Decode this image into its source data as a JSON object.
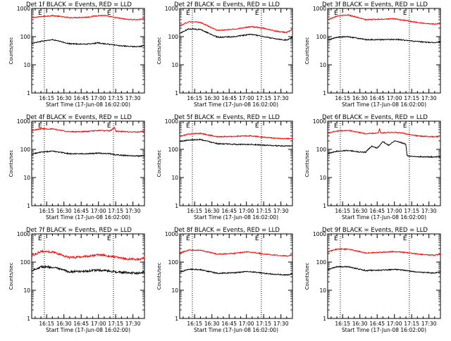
{
  "chart_data": [
    {
      "type": "line",
      "title": "Det 1f BLACK = Events, RED = LLD",
      "xlabel": "Start Time (17-Jun-08 16:02:00)",
      "ylabel": "Counts/sec",
      "yscale": "log",
      "ylim": [
        1,
        1000
      ],
      "xlim": [
        "16:02",
        "17:40"
      ],
      "x_ticks": [
        "16:15",
        "16:30",
        "16:45",
        "17:00",
        "17:15",
        "17:30"
      ],
      "y_ticks": [
        "1",
        "10",
        "100",
        "1000"
      ],
      "markers": [
        {
          "time": "16:13",
          "label": "E"
        },
        {
          "time": "17:13",
          "label": "E"
        }
      ],
      "legend": "none",
      "grid": false,
      "series": [
        {
          "name": "RED",
          "color": "#ff0000",
          "x": [
            "16:02",
            "16:10",
            "16:20",
            "16:35",
            "16:50",
            "17:00",
            "17:05",
            "17:15",
            "17:25",
            "17:35",
            "17:40"
          ],
          "y": [
            470,
            510,
            560,
            470,
            490,
            560,
            560,
            470,
            410,
            400,
            450
          ]
        },
        {
          "name": "BLACK",
          "color": "#000000",
          "x": [
            "16:02",
            "16:10",
            "16:20",
            "16:35",
            "16:50",
            "17:00",
            "17:05",
            "17:15",
            "17:25",
            "17:35",
            "17:40"
          ],
          "y": [
            58,
            68,
            78,
            56,
            54,
            60,
            56,
            50,
            45,
            44,
            48
          ]
        }
      ]
    },
    {
      "type": "line",
      "title": "Det 2f BLACK = Events, RED = LLD",
      "xlabel": "Start Time (17-Jun-08 16:02:00)",
      "ylabel": "Counts/sec",
      "yscale": "log",
      "ylim": [
        1,
        1000
      ],
      "xlim": [
        "16:02",
        "17:40"
      ],
      "x_ticks": [
        "16:15",
        "16:30",
        "16:45",
        "17:00",
        "17:15",
        "17:30"
      ],
      "y_ticks": [
        "1",
        "10",
        "100",
        "1000"
      ],
      "markers": [
        {
          "time": "16:13",
          "label": "E"
        },
        {
          "time": "17:13",
          "label": "E"
        }
      ],
      "legend": "none",
      "grid": false,
      "series": [
        {
          "name": "RED",
          "color": "#ff0000",
          "x": [
            "16:02",
            "16:10",
            "16:20",
            "16:35",
            "16:50",
            "17:00",
            "17:05",
            "17:15",
            "17:25",
            "17:35",
            "17:40"
          ],
          "y": [
            240,
            340,
            320,
            165,
            185,
            215,
            225,
            200,
            160,
            140,
            180
          ]
        },
        {
          "name": "BLACK",
          "color": "#000000",
          "x": [
            "16:02",
            "16:10",
            "16:20",
            "16:35",
            "16:50",
            "17:00",
            "17:05",
            "17:15",
            "17:25",
            "17:35",
            "17:40"
          ],
          "y": [
            130,
            190,
            180,
            95,
            100,
            115,
            120,
            100,
            85,
            75,
            95
          ]
        }
      ]
    },
    {
      "type": "line",
      "title": "Det 3f BLACK = Events, RED = LLD",
      "xlabel": "Start Time (17-Jun-08 16:02:00)",
      "ylabel": "Counts/sec",
      "yscale": "log",
      "ylim": [
        1,
        1000
      ],
      "xlim": [
        "16:02",
        "17:40"
      ],
      "x_ticks": [
        "16:15",
        "16:30",
        "16:45",
        "17:00",
        "17:15",
        "17:30"
      ],
      "y_ticks": [
        "1",
        "10",
        "100",
        "1000"
      ],
      "markers": [
        {
          "time": "16:13",
          "label": "E"
        },
        {
          "time": "17:13",
          "label": "E"
        }
      ],
      "legend": "none",
      "grid": false,
      "series": [
        {
          "name": "RED",
          "color": "#ff0000",
          "x": [
            "16:02",
            "16:10",
            "16:20",
            "16:35",
            "16:50",
            "17:00",
            "17:05",
            "17:15",
            "17:25",
            "17:35",
            "17:40"
          ],
          "y": [
            400,
            540,
            590,
            400,
            420,
            430,
            400,
            340,
            300,
            280,
            290
          ]
        },
        {
          "name": "BLACK",
          "color": "#000000",
          "x": [
            "16:02",
            "16:10",
            "16:20",
            "16:35",
            "16:50",
            "17:00",
            "17:05",
            "17:15",
            "17:25",
            "17:35",
            "17:40"
          ],
          "y": [
            75,
            95,
            100,
            78,
            78,
            80,
            78,
            70,
            64,
            62,
            66
          ]
        }
      ]
    },
    {
      "type": "line",
      "title": "Det 4f BLACK = Events, RED = LLD",
      "xlabel": "Start Time (17-Jun-08 16:02:00)",
      "ylabel": "Counts/sec",
      "yscale": "log",
      "ylim": [
        1,
        1000
      ],
      "xlim": [
        "16:02",
        "17:40"
      ],
      "x_ticks": [
        "16:15",
        "16:30",
        "16:45",
        "17:00",
        "17:15",
        "17:30"
      ],
      "y_ticks": [
        "1",
        "10",
        "100",
        "1000"
      ],
      "markers": [
        {
          "time": "16:13",
          "label": "E"
        },
        {
          "time": "17:13",
          "label": "E"
        }
      ],
      "legend": "none",
      "grid": false,
      "series": [
        {
          "name": "RED",
          "color": "#ff0000",
          "x": [
            "16:02",
            "16:10",
            "16:20",
            "16:35",
            "16:50",
            "17:00",
            "17:10",
            "17:14",
            "17:15",
            "17:25",
            "17:35",
            "17:40"
          ],
          "y": [
            460,
            540,
            530,
            420,
            430,
            470,
            450,
            600,
            440,
            420,
            410,
            440
          ]
        },
        {
          "name": "BLACK",
          "color": "#000000",
          "x": [
            "16:02",
            "16:10",
            "16:20",
            "16:35",
            "16:50",
            "17:00",
            "17:10",
            "17:15",
            "17:25",
            "17:35",
            "17:40"
          ],
          "y": [
            68,
            80,
            86,
            70,
            70,
            74,
            70,
            64,
            60,
            58,
            60
          ]
        }
      ]
    },
    {
      "type": "line",
      "title": "Det 5f BLACK = Events, RED = LLD",
      "xlabel": "Start Time (17-Jun-08 16:02:00)",
      "ylabel": "Counts/sec",
      "yscale": "log",
      "ylim": [
        1,
        1000
      ],
      "xlim": [
        "16:02",
        "17:40"
      ],
      "x_ticks": [
        "16:15",
        "16:30",
        "16:45",
        "17:00",
        "17:15",
        "17:30"
      ],
      "y_ticks": [
        "1",
        "10",
        "100",
        "1000"
      ],
      "markers": [
        {
          "time": "16:13",
          "label": "E"
        },
        {
          "time": "17:13",
          "label": "E"
        }
      ],
      "legend": "none",
      "grid": false,
      "series": [
        {
          "name": "RED",
          "color": "#ff0000",
          "x": [
            "16:02",
            "16:10",
            "16:20",
            "16:35",
            "16:50",
            "17:00",
            "17:05",
            "17:15",
            "17:25",
            "17:35",
            "17:40"
          ],
          "y": [
            290,
            350,
            370,
            280,
            290,
            300,
            300,
            270,
            250,
            240,
            250
          ]
        },
        {
          "name": "BLACK",
          "color": "#000000",
          "x": [
            "16:02",
            "16:10",
            "16:20",
            "16:35",
            "16:50",
            "17:00",
            "17:05",
            "17:15",
            "17:25",
            "17:35",
            "17:40"
          ],
          "y": [
            190,
            215,
            225,
            160,
            150,
            150,
            150,
            140,
            135,
            130,
            135
          ]
        }
      ]
    },
    {
      "type": "line",
      "title": "Det 6f BLACK = Events, RED = LLD",
      "xlabel": "Start Time (17-Jun-08 16:02:00)",
      "ylabel": "Counts/sec",
      "yscale": "log",
      "ylim": [
        1,
        1000
      ],
      "xlim": [
        "16:02",
        "17:40"
      ],
      "x_ticks": [
        "16:15",
        "16:30",
        "16:45",
        "17:00",
        "17:15",
        "17:30"
      ],
      "y_ticks": [
        "1",
        "10",
        "100",
        "1000"
      ],
      "markers": [
        {
          "time": "16:13",
          "label": "E"
        },
        {
          "time": "17:13",
          "label": "E"
        }
      ],
      "legend": "none",
      "grid": false,
      "series": [
        {
          "name": "RED",
          "color": "#ff0000",
          "x": [
            "16:02",
            "16:10",
            "16:20",
            "16:35",
            "16:46",
            "16:47",
            "16:48",
            "16:55",
            "17:05",
            "17:10",
            "17:15",
            "17:25",
            "17:35",
            "17:40"
          ],
          "y": [
            380,
            450,
            470,
            360,
            380,
            540,
            380,
            400,
            390,
            360,
            320,
            290,
            280,
            290
          ]
        },
        {
          "name": "BLACK",
          "color": "#000000",
          "x": [
            "16:02",
            "16:10",
            "16:20",
            "16:30",
            "16:35",
            "16:40",
            "16:45",
            "16:50",
            "16:55",
            "17:00",
            "17:05",
            "17:10",
            "17:11",
            "17:15",
            "17:25",
            "17:35",
            "17:40"
          ],
          "y": [
            70,
            86,
            92,
            80,
            80,
            130,
            110,
            190,
            140,
            200,
            180,
            150,
            60,
            56,
            54,
            54,
            55
          ]
        }
      ]
    },
    {
      "type": "line",
      "title": "Det 7f BLACK = Events, RED = LLD",
      "xlabel": "Start Time (17-Jun-08 16:02:00)",
      "ylabel": "Counts/sec",
      "yscale": "log",
      "ylim": [
        1,
        1000
      ],
      "xlim": [
        "16:02",
        "17:40"
      ],
      "x_ticks": [
        "16:15",
        "16:30",
        "16:45",
        "17:00",
        "17:15",
        "17:30"
      ],
      "y_ticks": [
        "1",
        "10",
        "100",
        "1000"
      ],
      "markers": [
        {
          "time": "16:13",
          "label": "E"
        },
        {
          "time": "17:13",
          "label": "E"
        }
      ],
      "legend": "none",
      "grid": false,
      "series": [
        {
          "name": "RED",
          "color": "#ff0000",
          "x": [
            "16:02",
            "16:10",
            "16:20",
            "16:35",
            "16:50",
            "17:00",
            "17:05",
            "17:15",
            "17:25",
            "17:35",
            "17:40"
          ],
          "y": [
            170,
            240,
            230,
            145,
            160,
            180,
            175,
            150,
            130,
            125,
            140
          ]
        },
        {
          "name": "BLACK",
          "color": "#000000",
          "x": [
            "16:02",
            "16:10",
            "16:20",
            "16:35",
            "16:50",
            "17:00",
            "17:05",
            "17:15",
            "17:25",
            "17:35",
            "17:40"
          ],
          "y": [
            50,
            68,
            66,
            45,
            48,
            52,
            50,
            45,
            42,
            40,
            44
          ]
        }
      ]
    },
    {
      "type": "line",
      "title": "Det 8f BLACK = Events, RED = LLD",
      "xlabel": "Start Time (17-Jun-08 16:02:00)",
      "ylabel": "Counts/sec",
      "yscale": "log",
      "ylim": [
        1,
        1000
      ],
      "xlim": [
        "16:02",
        "17:40"
      ],
      "x_ticks": [
        "16:15",
        "16:30",
        "16:45",
        "17:00",
        "17:15",
        "17:30"
      ],
      "y_ticks": [
        "1",
        "10",
        "100",
        "1000"
      ],
      "markers": [
        {
          "time": "16:13",
          "label": "E"
        },
        {
          "time": "17:13",
          "label": "E"
        }
      ],
      "legend": "none",
      "grid": false,
      "series": [
        {
          "name": "RED",
          "color": "#ff0000",
          "x": [
            "16:02",
            "16:10",
            "16:20",
            "16:35",
            "16:50",
            "17:00",
            "17:05",
            "17:15",
            "17:25",
            "17:35",
            "17:40"
          ],
          "y": [
            210,
            270,
            265,
            190,
            205,
            230,
            225,
            195,
            175,
            165,
            180
          ]
        },
        {
          "name": "BLACK",
          "color": "#000000",
          "x": [
            "16:02",
            "16:10",
            "16:20",
            "16:35",
            "16:50",
            "17:00",
            "17:05",
            "17:15",
            "17:25",
            "17:35",
            "17:40"
          ],
          "y": [
            44,
            56,
            54,
            40,
            42,
            46,
            45,
            40,
            37,
            35,
            38
          ]
        }
      ]
    },
    {
      "type": "line",
      "title": "Det 9f BLACK = Events, RED = LLD",
      "xlabel": "Start Time (17-Jun-08 16:02:00)",
      "ylabel": "Counts/sec",
      "yscale": "log",
      "ylim": [
        1,
        1000
      ],
      "xlim": [
        "16:02",
        "17:40"
      ],
      "x_ticks": [
        "16:15",
        "16:30",
        "16:45",
        "17:00",
        "17:15",
        "17:30"
      ],
      "y_ticks": [
        "1",
        "10",
        "100",
        "1000"
      ],
      "markers": [
        {
          "time": "16:13",
          "label": "E"
        },
        {
          "time": "17:13",
          "label": "E"
        }
      ],
      "legend": "none",
      "grid": false,
      "series": [
        {
          "name": "RED",
          "color": "#ff0000",
          "x": [
            "16:02",
            "16:10",
            "16:20",
            "16:35",
            "16:50",
            "17:00",
            "17:05",
            "17:15",
            "17:25",
            "17:35",
            "17:40"
          ],
          "y": [
            230,
            290,
            290,
            210,
            225,
            235,
            230,
            205,
            185,
            175,
            190
          ]
        },
        {
          "name": "BLACK",
          "color": "#000000",
          "x": [
            "16:02",
            "16:10",
            "16:20",
            "16:35",
            "16:50",
            "17:00",
            "17:05",
            "17:15",
            "17:25",
            "17:35",
            "17:40"
          ],
          "y": [
            54,
            68,
            68,
            50,
            52,
            55,
            53,
            47,
            43,
            41,
            45
          ]
        }
      ]
    }
  ]
}
